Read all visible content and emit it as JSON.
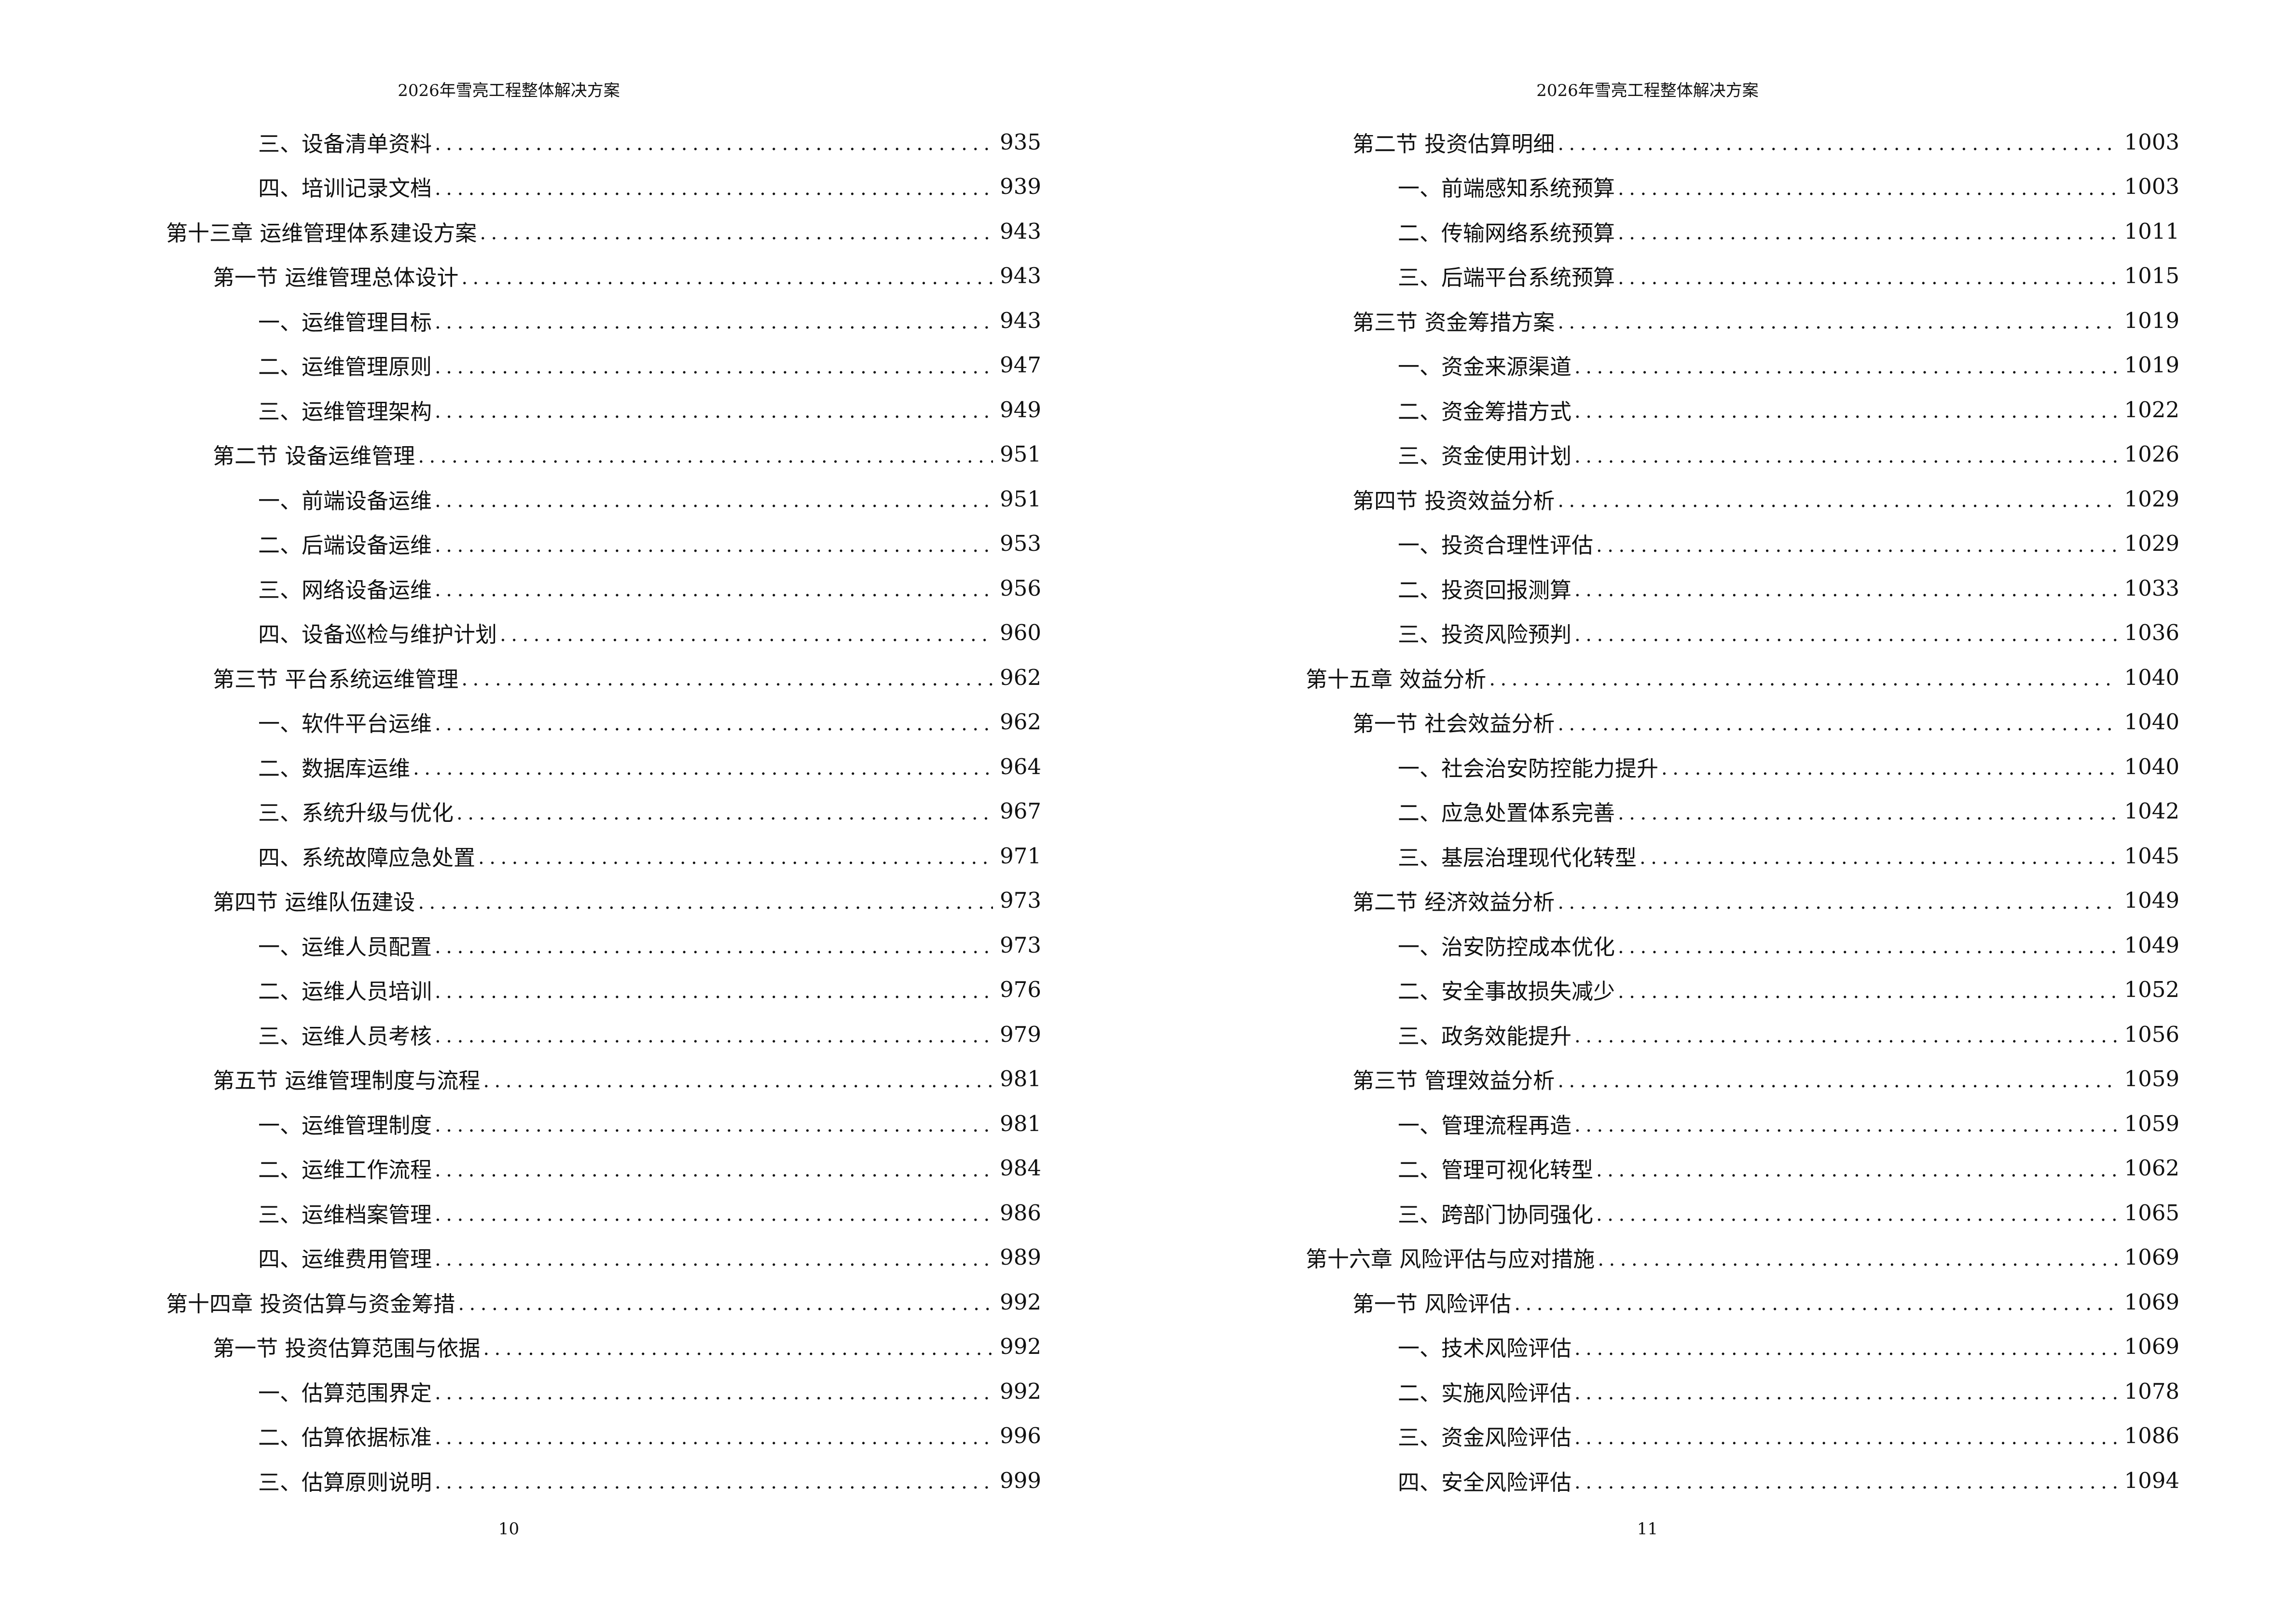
{
  "pages": [
    {
      "header": "2026年雪亮工程整体解决方案",
      "page_number": "10",
      "entries": [
        {
          "level": 3,
          "title": "三、设备清单资料",
          "page": "935"
        },
        {
          "level": 3,
          "title": "四、培训记录文档",
          "page": "939"
        },
        {
          "level": 1,
          "title": "第十三章  运维管理体系建设方案",
          "page": "943"
        },
        {
          "level": 2,
          "title": "第一节  运维管理总体设计",
          "page": "943"
        },
        {
          "level": 3,
          "title": "一、运维管理目标",
          "page": "943"
        },
        {
          "level": 3,
          "title": "二、运维管理原则",
          "page": "947"
        },
        {
          "level": 3,
          "title": "三、运维管理架构",
          "page": "949"
        },
        {
          "level": 2,
          "title": "第二节  设备运维管理",
          "page": "951"
        },
        {
          "level": 3,
          "title": "一、前端设备运维",
          "page": "951"
        },
        {
          "level": 3,
          "title": "二、后端设备运维",
          "page": "953"
        },
        {
          "level": 3,
          "title": "三、网络设备运维",
          "page": "956"
        },
        {
          "level": 3,
          "title": "四、设备巡检与维护计划",
          "page": "960"
        },
        {
          "level": 2,
          "title": "第三节  平台系统运维管理",
          "page": "962"
        },
        {
          "level": 3,
          "title": "一、软件平台运维",
          "page": "962"
        },
        {
          "level": 3,
          "title": "二、数据库运维",
          "page": "964"
        },
        {
          "level": 3,
          "title": "三、系统升级与优化",
          "page": "967"
        },
        {
          "level": 3,
          "title": "四、系统故障应急处置",
          "page": "971"
        },
        {
          "level": 2,
          "title": "第四节  运维队伍建设",
          "page": "973"
        },
        {
          "level": 3,
          "title": "一、运维人员配置",
          "page": "973"
        },
        {
          "level": 3,
          "title": "二、运维人员培训",
          "page": "976"
        },
        {
          "level": 3,
          "title": "三、运维人员考核",
          "page": "979"
        },
        {
          "level": 2,
          "title": "第五节  运维管理制度与流程",
          "page": "981"
        },
        {
          "level": 3,
          "title": "一、运维管理制度",
          "page": "981"
        },
        {
          "level": 3,
          "title": "二、运维工作流程",
          "page": "984"
        },
        {
          "level": 3,
          "title": "三、运维档案管理",
          "page": "986"
        },
        {
          "level": 3,
          "title": "四、运维费用管理",
          "page": "989"
        },
        {
          "level": 1,
          "title": "第十四章  投资估算与资金筹措",
          "page": "992"
        },
        {
          "level": 2,
          "title": "第一节  投资估算范围与依据",
          "page": "992"
        },
        {
          "level": 3,
          "title": "一、估算范围界定",
          "page": "992"
        },
        {
          "level": 3,
          "title": "二、估算依据标准",
          "page": "996"
        },
        {
          "level": 3,
          "title": "三、估算原则说明",
          "page": "999"
        }
      ]
    },
    {
      "header": "2026年雪亮工程整体解决方案",
      "page_number": "11",
      "entries": [
        {
          "level": 2,
          "title": "第二节  投资估算明细",
          "page": "1003"
        },
        {
          "level": 3,
          "title": "一、前端感知系统预算",
          "page": "1003"
        },
        {
          "level": 3,
          "title": "二、传输网络系统预算",
          "page": "1011"
        },
        {
          "level": 3,
          "title": "三、后端平台系统预算",
          "page": "1015"
        },
        {
          "level": 2,
          "title": "第三节  资金筹措方案",
          "page": "1019"
        },
        {
          "level": 3,
          "title": "一、资金来源渠道",
          "page": "1019"
        },
        {
          "level": 3,
          "title": "二、资金筹措方式",
          "page": "1022"
        },
        {
          "level": 3,
          "title": "三、资金使用计划",
          "page": "1026"
        },
        {
          "level": 2,
          "title": "第四节  投资效益分析",
          "page": "1029"
        },
        {
          "level": 3,
          "title": "一、投资合理性评估",
          "page": "1029"
        },
        {
          "level": 3,
          "title": "二、投资回报测算",
          "page": "1033"
        },
        {
          "level": 3,
          "title": "三、投资风险预判",
          "page": "1036"
        },
        {
          "level": 1,
          "title": "第十五章  效益分析",
          "page": "1040"
        },
        {
          "level": 2,
          "title": "第一节  社会效益分析",
          "page": "1040"
        },
        {
          "level": 3,
          "title": "一、社会治安防控能力提升",
          "page": "1040"
        },
        {
          "level": 3,
          "title": "二、应急处置体系完善",
          "page": "1042"
        },
        {
          "level": 3,
          "title": "三、基层治理现代化转型",
          "page": "1045"
        },
        {
          "level": 2,
          "title": "第二节  经济效益分析",
          "page": "1049"
        },
        {
          "level": 3,
          "title": "一、治安防控成本优化",
          "page": "1049"
        },
        {
          "level": 3,
          "title": "二、安全事故损失减少",
          "page": "1052"
        },
        {
          "level": 3,
          "title": "三、政务效能提升",
          "page": "1056"
        },
        {
          "level": 2,
          "title": "第三节  管理效益分析",
          "page": "1059"
        },
        {
          "level": 3,
          "title": "一、管理流程再造",
          "page": "1059"
        },
        {
          "level": 3,
          "title": "二、管理可视化转型",
          "page": "1062"
        },
        {
          "level": 3,
          "title": "三、跨部门协同强化",
          "page": "1065"
        },
        {
          "level": 1,
          "title": "第十六章  风险评估与应对措施",
          "page": "1069"
        },
        {
          "level": 2,
          "title": "第一节  风险评估",
          "page": "1069"
        },
        {
          "level": 3,
          "title": "一、技术风险评估",
          "page": "1069"
        },
        {
          "level": 3,
          "title": "二、实施风险评估",
          "page": "1078"
        },
        {
          "level": 3,
          "title": "三、资金风险评估",
          "page": "1086"
        },
        {
          "level": 3,
          "title": "四、安全风险评估",
          "page": "1094"
        }
      ]
    }
  ]
}
